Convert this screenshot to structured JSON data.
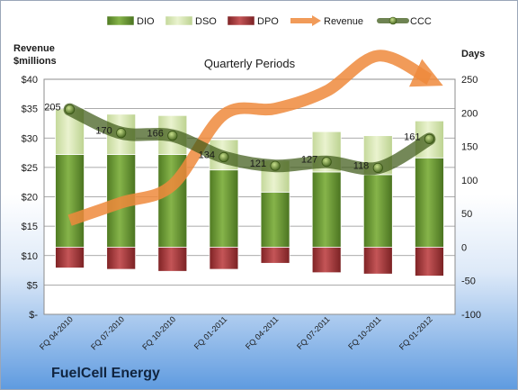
{
  "company_name": "FuelCell Energy",
  "chart_data": {
    "type": "bar",
    "subtitle": "Quarterly Periods",
    "categories": [
      "FQ 04-2010",
      "FQ 07-2010",
      "FQ 10-2010",
      "FQ 01-2011",
      "FQ 04-2011",
      "FQ 07-2011",
      "FQ 10-2011",
      "FQ 01-2012"
    ],
    "left_axis": {
      "label_line1": "Revenue",
      "label_line2": "$millions",
      "range": [
        0,
        40
      ],
      "ticks": [
        0,
        5,
        10,
        15,
        20,
        25,
        30,
        35,
        40
      ],
      "tick_labels": [
        "$-",
        "$5",
        "$10",
        "$15",
        "$20",
        "$25",
        "$30",
        "$35",
        "$40"
      ]
    },
    "right_axis": {
      "label": "Days",
      "range": [
        -100,
        250
      ],
      "ticks": [
        -100,
        -50,
        0,
        50,
        100,
        150,
        200,
        250
      ],
      "tick_labels": [
        "-100",
        "-50",
        "0",
        "50",
        "100",
        "150",
        "200",
        "250"
      ]
    },
    "legend_position": "top",
    "legend": [
      {
        "label": "DIO",
        "color": "#6e9a34"
      },
      {
        "label": "DSO",
        "color": "#d6e6ad"
      },
      {
        "label": "DPO",
        "color": "#a83a3c"
      },
      {
        "label": "Revenue",
        "color": "#ee8a3c"
      },
      {
        "label": "CCC",
        "color": "#5d7a2e"
      }
    ],
    "series": [
      {
        "name": "DIO",
        "axis": "days",
        "values": [
          138,
          138,
          138,
          115,
          82,
          112,
          108,
          133
        ]
      },
      {
        "name": "DSO",
        "axis": "days",
        "values": [
          68,
          60,
          58,
          45,
          47,
          60,
          58,
          55
        ]
      },
      {
        "name": "DPO",
        "axis": "days",
        "values": [
          -31,
          -33,
          -36,
          -33,
          -24,
          -38,
          -40,
          -43
        ]
      },
      {
        "name": "Revenue",
        "axis": "revenue",
        "values": [
          16,
          19,
          22,
          34,
          35,
          38,
          44,
          40
        ]
      },
      {
        "name": "CCC",
        "axis": "days",
        "values": [
          205,
          170,
          166,
          134,
          121,
          127,
          118,
          161
        ]
      }
    ],
    "ccc_labels": [
      "205",
      "170",
      "166",
      "134",
      "121",
      "127",
      "118",
      "161"
    ],
    "grid": true
  }
}
